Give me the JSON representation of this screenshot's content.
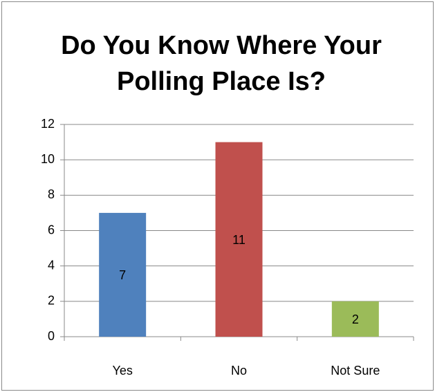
{
  "chart_data": {
    "type": "bar",
    "title": "Do You Know Where Your Polling Place Is?",
    "categories": [
      "Yes",
      "No",
      "Not Sure"
    ],
    "values": [
      7,
      11,
      2
    ],
    "colors": [
      "#4f81bd",
      "#c0504d",
      "#9bbb59"
    ],
    "ylim": [
      0,
      12
    ],
    "yticks": [
      0,
      2,
      4,
      6,
      8,
      10,
      12
    ],
    "grid": true,
    "data_labels": true
  }
}
